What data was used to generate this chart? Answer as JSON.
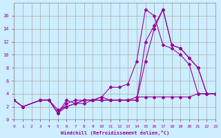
{
  "xlabel": "Windchill (Refroidissement éolien,°C)",
  "background_color": "#cceeff",
  "grid_color": "#aaaaaa",
  "line_color": "#990099",
  "xlim": [
    0,
    23
  ],
  "ylim": [
    0,
    18
  ],
  "xticks": [
    0,
    1,
    2,
    3,
    4,
    5,
    6,
    7,
    8,
    9,
    10,
    11,
    12,
    13,
    14,
    15,
    16,
    17,
    18,
    19,
    20,
    21,
    22,
    23
  ],
  "yticks": [
    0,
    2,
    4,
    6,
    8,
    10,
    12,
    14,
    16
  ],
  "series": [
    {
      "x": [
        0,
        1,
        3,
        4,
        5,
        6,
        7,
        8,
        9,
        10,
        11,
        12,
        13,
        14,
        15,
        16,
        17,
        18,
        19,
        20,
        21,
        22,
        23
      ],
      "y": [
        3,
        2,
        3,
        3,
        1,
        3,
        2.5,
        3,
        3,
        3.5,
        3,
        3,
        3,
        3.5,
        3.5,
        3.5,
        3.5,
        3.5,
        3.5,
        3.5,
        4,
        4,
        4
      ]
    },
    {
      "x": [
        0,
        1,
        3,
        4,
        5,
        6,
        7,
        8,
        9,
        10,
        11,
        12,
        13,
        14,
        15,
        16,
        17,
        18,
        19,
        20,
        21,
        22,
        23
      ],
      "y": [
        3,
        2,
        3,
        3,
        1,
        2.5,
        3,
        3,
        3,
        3.5,
        5,
        5,
        5.5,
        9,
        17,
        16,
        11.5,
        11,
        10,
        8.5,
        4,
        4,
        4
      ]
    },
    {
      "x": [
        0,
        1,
        3,
        4,
        5,
        6,
        7,
        8,
        9,
        10,
        11,
        12,
        13,
        14,
        15,
        16,
        17,
        18,
        19,
        20,
        21,
        22,
        23
      ],
      "y": [
        3,
        2,
        3,
        3,
        1,
        2,
        2.5,
        3,
        3,
        3,
        3,
        3,
        3,
        3,
        9,
        14,
        17,
        11.5,
        11,
        9.5,
        8,
        4,
        4
      ]
    },
    {
      "x": [
        0,
        1,
        3,
        4,
        5,
        6,
        7,
        8,
        9,
        10,
        11,
        12,
        13,
        14,
        15,
        16,
        17,
        18,
        19,
        20,
        21,
        22,
        23
      ],
      "y": [
        3,
        2,
        3,
        3,
        1.5,
        2,
        2.5,
        2.5,
        3,
        3,
        3,
        3,
        3,
        3,
        12,
        14.5,
        17,
        11.5,
        11,
        9.5,
        8,
        4,
        4
      ]
    }
  ]
}
